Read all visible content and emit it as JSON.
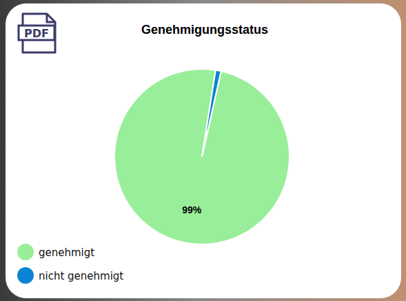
{
  "toolbar": {
    "export": "PDF"
  },
  "chart_data": {
    "type": "pie",
    "title": "Genehmigungsstatus",
    "categories": [
      "genehmigt",
      "nicht genehmigt"
    ],
    "values": [
      99,
      1
    ],
    "value_labels": [
      "99%",
      null
    ],
    "colors": [
      "#99ee99",
      "#0b84d4"
    ],
    "data_labels": true,
    "legend": "bottom-left"
  }
}
